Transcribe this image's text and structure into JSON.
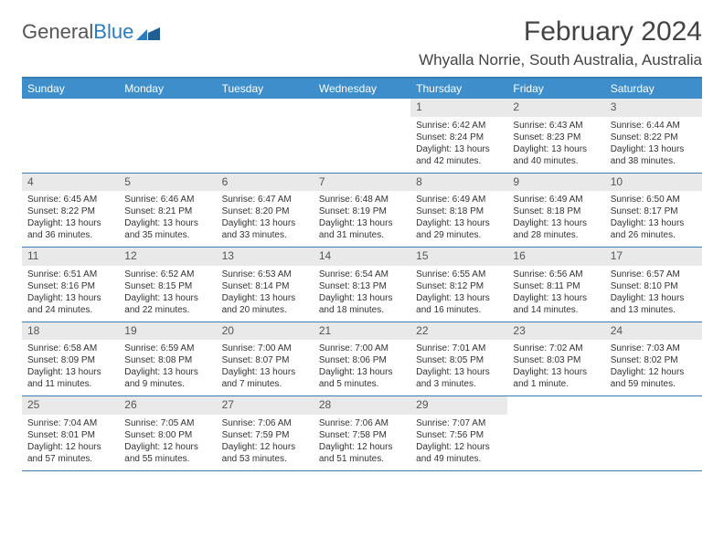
{
  "logo": {
    "part1": "General",
    "part2": "Blue"
  },
  "title": "February 2024",
  "location": "Whyalla Norrie, South Australia, Australia",
  "colors": {
    "header_bg": "#3d8ecb",
    "border": "#3a7db5",
    "daynum_bg": "#e9e9e9",
    "text": "#333333"
  },
  "day_headers": [
    "Sunday",
    "Monday",
    "Tuesday",
    "Wednesday",
    "Thursday",
    "Friday",
    "Saturday"
  ],
  "weeks": [
    [
      {
        "n": "",
        "sr": "",
        "ss": "",
        "dl": ""
      },
      {
        "n": "",
        "sr": "",
        "ss": "",
        "dl": ""
      },
      {
        "n": "",
        "sr": "",
        "ss": "",
        "dl": ""
      },
      {
        "n": "",
        "sr": "",
        "ss": "",
        "dl": ""
      },
      {
        "n": "1",
        "sr": "Sunrise: 6:42 AM",
        "ss": "Sunset: 8:24 PM",
        "dl": "Daylight: 13 hours and 42 minutes."
      },
      {
        "n": "2",
        "sr": "Sunrise: 6:43 AM",
        "ss": "Sunset: 8:23 PM",
        "dl": "Daylight: 13 hours and 40 minutes."
      },
      {
        "n": "3",
        "sr": "Sunrise: 6:44 AM",
        "ss": "Sunset: 8:22 PM",
        "dl": "Daylight: 13 hours and 38 minutes."
      }
    ],
    [
      {
        "n": "4",
        "sr": "Sunrise: 6:45 AM",
        "ss": "Sunset: 8:22 PM",
        "dl": "Daylight: 13 hours and 36 minutes."
      },
      {
        "n": "5",
        "sr": "Sunrise: 6:46 AM",
        "ss": "Sunset: 8:21 PM",
        "dl": "Daylight: 13 hours and 35 minutes."
      },
      {
        "n": "6",
        "sr": "Sunrise: 6:47 AM",
        "ss": "Sunset: 8:20 PM",
        "dl": "Daylight: 13 hours and 33 minutes."
      },
      {
        "n": "7",
        "sr": "Sunrise: 6:48 AM",
        "ss": "Sunset: 8:19 PM",
        "dl": "Daylight: 13 hours and 31 minutes."
      },
      {
        "n": "8",
        "sr": "Sunrise: 6:49 AM",
        "ss": "Sunset: 8:18 PM",
        "dl": "Daylight: 13 hours and 29 minutes."
      },
      {
        "n": "9",
        "sr": "Sunrise: 6:49 AM",
        "ss": "Sunset: 8:18 PM",
        "dl": "Daylight: 13 hours and 28 minutes."
      },
      {
        "n": "10",
        "sr": "Sunrise: 6:50 AM",
        "ss": "Sunset: 8:17 PM",
        "dl": "Daylight: 13 hours and 26 minutes."
      }
    ],
    [
      {
        "n": "11",
        "sr": "Sunrise: 6:51 AM",
        "ss": "Sunset: 8:16 PM",
        "dl": "Daylight: 13 hours and 24 minutes."
      },
      {
        "n": "12",
        "sr": "Sunrise: 6:52 AM",
        "ss": "Sunset: 8:15 PM",
        "dl": "Daylight: 13 hours and 22 minutes."
      },
      {
        "n": "13",
        "sr": "Sunrise: 6:53 AM",
        "ss": "Sunset: 8:14 PM",
        "dl": "Daylight: 13 hours and 20 minutes."
      },
      {
        "n": "14",
        "sr": "Sunrise: 6:54 AM",
        "ss": "Sunset: 8:13 PM",
        "dl": "Daylight: 13 hours and 18 minutes."
      },
      {
        "n": "15",
        "sr": "Sunrise: 6:55 AM",
        "ss": "Sunset: 8:12 PM",
        "dl": "Daylight: 13 hours and 16 minutes."
      },
      {
        "n": "16",
        "sr": "Sunrise: 6:56 AM",
        "ss": "Sunset: 8:11 PM",
        "dl": "Daylight: 13 hours and 14 minutes."
      },
      {
        "n": "17",
        "sr": "Sunrise: 6:57 AM",
        "ss": "Sunset: 8:10 PM",
        "dl": "Daylight: 13 hours and 13 minutes."
      }
    ],
    [
      {
        "n": "18",
        "sr": "Sunrise: 6:58 AM",
        "ss": "Sunset: 8:09 PM",
        "dl": "Daylight: 13 hours and 11 minutes."
      },
      {
        "n": "19",
        "sr": "Sunrise: 6:59 AM",
        "ss": "Sunset: 8:08 PM",
        "dl": "Daylight: 13 hours and 9 minutes."
      },
      {
        "n": "20",
        "sr": "Sunrise: 7:00 AM",
        "ss": "Sunset: 8:07 PM",
        "dl": "Daylight: 13 hours and 7 minutes."
      },
      {
        "n": "21",
        "sr": "Sunrise: 7:00 AM",
        "ss": "Sunset: 8:06 PM",
        "dl": "Daylight: 13 hours and 5 minutes."
      },
      {
        "n": "22",
        "sr": "Sunrise: 7:01 AM",
        "ss": "Sunset: 8:05 PM",
        "dl": "Daylight: 13 hours and 3 minutes."
      },
      {
        "n": "23",
        "sr": "Sunrise: 7:02 AM",
        "ss": "Sunset: 8:03 PM",
        "dl": "Daylight: 13 hours and 1 minute."
      },
      {
        "n": "24",
        "sr": "Sunrise: 7:03 AM",
        "ss": "Sunset: 8:02 PM",
        "dl": "Daylight: 12 hours and 59 minutes."
      }
    ],
    [
      {
        "n": "25",
        "sr": "Sunrise: 7:04 AM",
        "ss": "Sunset: 8:01 PM",
        "dl": "Daylight: 12 hours and 57 minutes."
      },
      {
        "n": "26",
        "sr": "Sunrise: 7:05 AM",
        "ss": "Sunset: 8:00 PM",
        "dl": "Daylight: 12 hours and 55 minutes."
      },
      {
        "n": "27",
        "sr": "Sunrise: 7:06 AM",
        "ss": "Sunset: 7:59 PM",
        "dl": "Daylight: 12 hours and 53 minutes."
      },
      {
        "n": "28",
        "sr": "Sunrise: 7:06 AM",
        "ss": "Sunset: 7:58 PM",
        "dl": "Daylight: 12 hours and 51 minutes."
      },
      {
        "n": "29",
        "sr": "Sunrise: 7:07 AM",
        "ss": "Sunset: 7:56 PM",
        "dl": "Daylight: 12 hours and 49 minutes."
      },
      {
        "n": "",
        "sr": "",
        "ss": "",
        "dl": ""
      },
      {
        "n": "",
        "sr": "",
        "ss": "",
        "dl": ""
      }
    ]
  ]
}
